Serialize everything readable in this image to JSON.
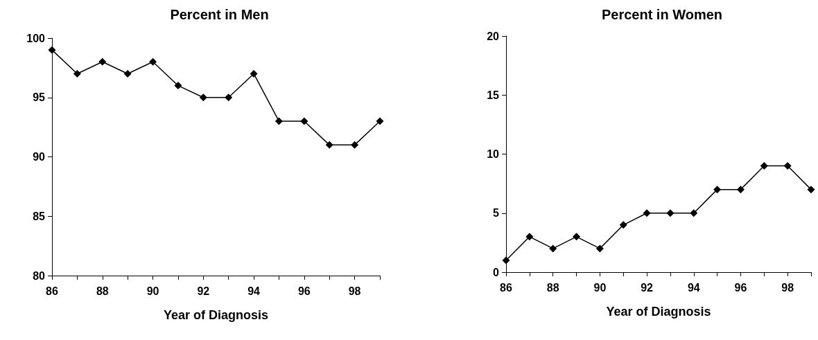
{
  "chart_data": [
    {
      "type": "line",
      "title": "Percent in Men",
      "xlabel": "Year of Diagnosis",
      "x": [
        86,
        87,
        88,
        89,
        90,
        91,
        92,
        93,
        94,
        95,
        96,
        97,
        98,
        99
      ],
      "series": [
        {
          "color": "#000000",
          "values": [
            99,
            97,
            98,
            97,
            98,
            96,
            95,
            95,
            97,
            93,
            93,
            91,
            91,
            93
          ]
        }
      ],
      "xlim": [
        86,
        99
      ],
      "xticks": [
        86,
        {
          "value": 87,
          "label": null
        },
        88,
        {
          "value": 89,
          "label": null
        },
        90,
        {
          "value": 91,
          "label": null
        },
        92,
        {
          "value": 93,
          "label": null
        },
        94,
        {
          "value": 95,
          "label": null
        },
        96,
        {
          "value": 97,
          "label": null
        },
        98,
        {
          "value": 99,
          "label": null
        }
      ],
      "ylim": [
        80,
        100
      ],
      "yticks": [
        80,
        85,
        90,
        95,
        100
      ],
      "grid": false,
      "marker": "diamond",
      "line_style": "solid"
    },
    {
      "type": "line",
      "title": "Percent in Women",
      "xlabel": "Year of Diagnosis",
      "x": [
        86,
        87,
        88,
        89,
        90,
        91,
        92,
        93,
        94,
        95,
        96,
        97,
        98,
        99
      ],
      "series": [
        {
          "color": "#000000",
          "values": [
            1,
            3,
            2,
            3,
            2,
            4,
            5,
            5,
            5,
            7,
            7,
            9,
            9,
            7
          ]
        }
      ],
      "xlim": [
        86,
        99
      ],
      "xticks": [
        86,
        {
          "value": 87,
          "label": null
        },
        88,
        {
          "value": 89,
          "label": null
        },
        90,
        {
          "value": 91,
          "label": null
        },
        92,
        {
          "value": 93,
          "label": null
        },
        94,
        {
          "value": 95,
          "label": null
        },
        96,
        {
          "value": 97,
          "label": null
        },
        98,
        {
          "value": 99,
          "label": null
        }
      ],
      "ylim": [
        0,
        20
      ],
      "yticks": [
        0,
        5,
        10,
        15,
        20
      ],
      "grid": false,
      "marker": "diamond",
      "line_style": "solid"
    }
  ]
}
